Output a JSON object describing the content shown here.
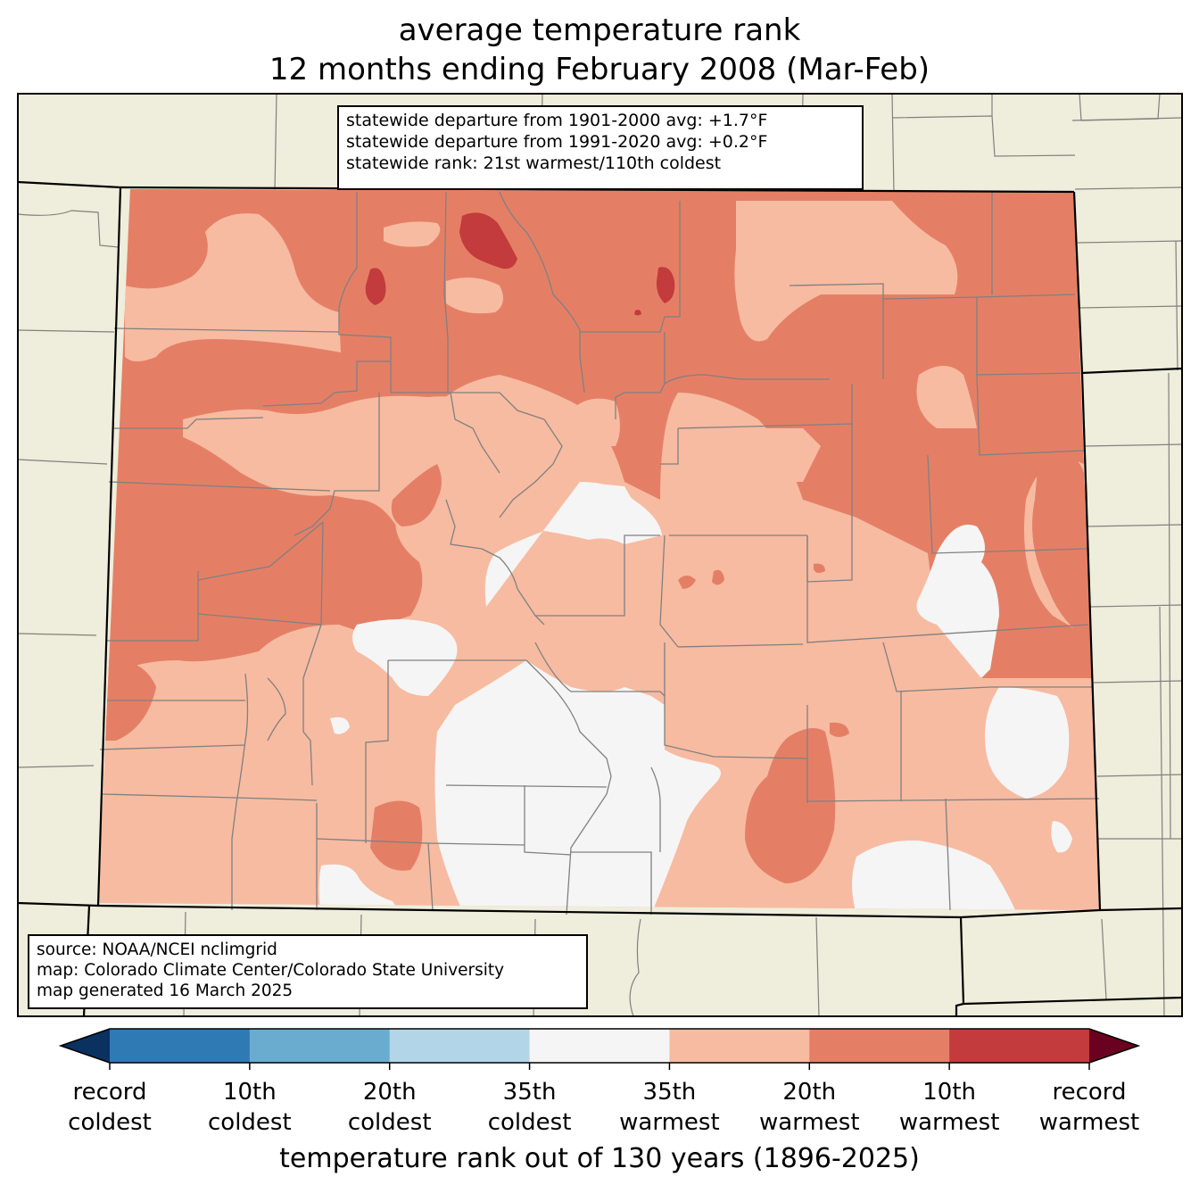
{
  "title": {
    "line1": "average temperature rank",
    "line2": "12 months ending February 2008 (Mar-Feb)"
  },
  "stats_box": {
    "line1": "statewide departure from 1901-2000 avg: +1.7°F",
    "line2": "statewide departure from 1991-2020 avg: +0.2°F",
    "line3": "statewide rank: 21st warmest/110th coldest"
  },
  "source_box": {
    "line1": "source: NOAA/NCEI nclimgrid",
    "line2": "map: Colorado Climate Center/Colorado State University",
    "line3": "map generated 16 March 2025"
  },
  "colorbar": {
    "label": "temperature rank out of 130 years (1896-2025)",
    "extend_low_color": "#0a3160",
    "extend_high_color": "#6b0120",
    "bins": [
      {
        "color": "#2f79b5"
      },
      {
        "color": "#6aacd0"
      },
      {
        "color": "#b2d6e7"
      },
      {
        "color": "#f5f5f5"
      },
      {
        "color": "#f7bba1"
      },
      {
        "color": "#e47f66"
      },
      {
        "color": "#c33b3c"
      }
    ],
    "ticks": [
      {
        "line1": "record",
        "line2": "coldest"
      },
      {
        "line1": "10th",
        "line2": "coldest"
      },
      {
        "line1": "20th",
        "line2": "coldest"
      },
      {
        "line1": "35th",
        "line2": "coldest"
      },
      {
        "line1": "35th",
        "line2": "warmest"
      },
      {
        "line1": "20th",
        "line2": "warmest"
      },
      {
        "line1": "10th",
        "line2": "warmest"
      },
      {
        "line1": "record",
        "line2": "warmest"
      }
    ]
  },
  "map_colors": {
    "background": "#efeddb",
    "state_border": "#000000",
    "county_border": "#808080",
    "near_normal": "#f5f5f5",
    "warm_35th": "#f7bba1",
    "warm_20th": "#e47f66",
    "warm_10th": "#c33b3c"
  }
}
